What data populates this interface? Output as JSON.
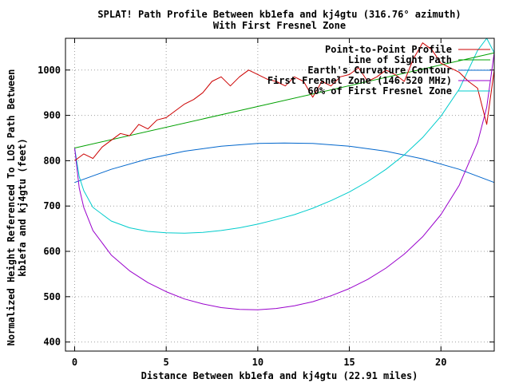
{
  "chart_data": {
    "type": "line",
    "title": "SPLAT! Path Profile Between kb1efa and kj4gtu (316.76° azimuth)",
    "subtitle": "With First Fresnel Zone",
    "xlabel": "Distance Between kb1efa and kj4gtu (22.91 miles)",
    "ylabel_line1": "Normalized Height Referenced To LOS Path Between",
    "ylabel_line2": "kb1efa and kj4gtu (feet)",
    "xlim": [
      -0.5,
      22.91
    ],
    "ylim": [
      380,
      1070
    ],
    "x_ticks": [
      0,
      5,
      10,
      15,
      20
    ],
    "y_ticks": [
      400,
      500,
      600,
      700,
      800,
      900,
      1000
    ],
    "grid": true,
    "legend_position": "top-right",
    "series": [
      {
        "name": "Point-to-Point Profile",
        "color": "#cc0000",
        "x": [
          0,
          0.5,
          1,
          1.5,
          2,
          2.5,
          3,
          3.5,
          4,
          4.5,
          5,
          5.5,
          6,
          6.5,
          7,
          7.5,
          8,
          8.5,
          9,
          9.5,
          10,
          10.5,
          11,
          11.5,
          12,
          12.5,
          13,
          13.5,
          14,
          14.5,
          15,
          15.5,
          16,
          16.5,
          17,
          17.5,
          18,
          18.5,
          19,
          19.5,
          20,
          20.5,
          21,
          21.5,
          22,
          22.5,
          22.91
        ],
        "y": [
          800,
          815,
          805,
          830,
          845,
          860,
          855,
          880,
          870,
          890,
          895,
          910,
          925,
          935,
          950,
          975,
          985,
          965,
          985,
          1000,
          990,
          980,
          975,
          965,
          985,
          975,
          940,
          975,
          965,
          985,
          990,
          1005,
          975,
          985,
          1000,
          990,
          975,
          1025,
          1060,
          1045,
          1015,
          1005,
          995,
          975,
          960,
          880,
          1000
        ]
      },
      {
        "name": "Line of Sight Path",
        "color": "#00a000",
        "x": [
          0,
          22.91
        ],
        "y": [
          828,
          1038
        ]
      },
      {
        "name": "Earth's Curvature Contour",
        "color": "#0066cc",
        "x": [
          0,
          2,
          4,
          6,
          8,
          10,
          11.45,
          13,
          15,
          17,
          19,
          21,
          22.91
        ],
        "y": [
          752,
          781,
          804,
          821,
          832,
          838,
          839,
          838,
          832,
          821,
          804,
          781,
          752
        ]
      },
      {
        "name": "First Fresnel Zone (146.520 MHz)",
        "color": "#9900cc",
        "x": [
          0,
          0.25,
          0.5,
          1,
          2,
          3,
          4,
          5,
          6,
          7,
          8,
          9,
          10,
          11,
          12,
          13,
          14,
          15,
          16,
          17,
          18,
          19,
          20,
          21,
          22,
          22.5,
          22.91
        ],
        "y": [
          828,
          740,
          697,
          646,
          592,
          557,
          531,
          511,
          495,
          484,
          476,
          472,
          471,
          474,
          480,
          489,
          502,
          518,
          538,
          563,
          594,
          632,
          681,
          746,
          840,
          918,
          1038
        ]
      },
      {
        "name": "60% of First Fresnel Zone",
        "color": "#00cccc",
        "x": [
          0,
          0.25,
          0.5,
          1,
          2,
          3,
          4,
          5,
          6,
          7,
          8,
          9,
          10,
          11,
          12,
          13,
          14,
          15,
          16,
          17,
          18,
          19,
          20,
          21,
          22,
          22.5,
          22.91
        ],
        "y": [
          828,
          765,
          734,
          697,
          667,
          652,
          644,
          641,
          640,
          642,
          646,
          652,
          660,
          670,
          681,
          695,
          712,
          731,
          754,
          781,
          813,
          851,
          898,
          958,
          1043,
          1074,
          1038
        ]
      }
    ]
  }
}
